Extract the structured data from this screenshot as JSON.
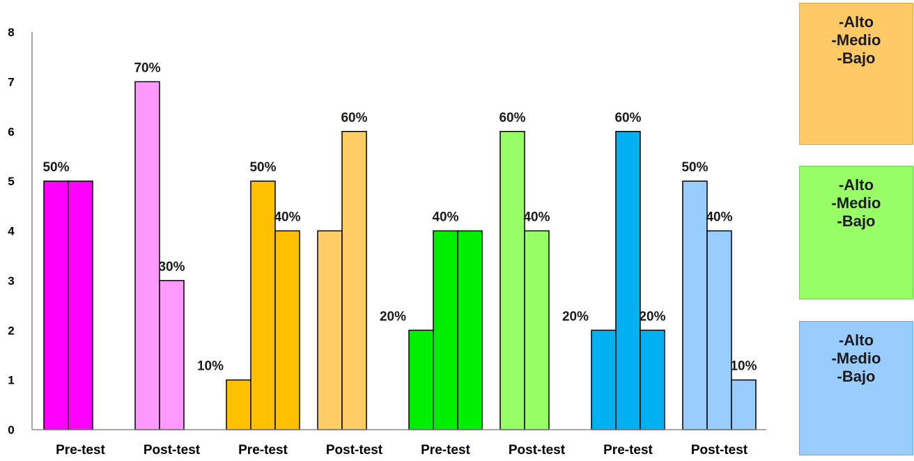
{
  "chart_data": {
    "type": "bar",
    "ylim": [
      0,
      8
    ],
    "yticks": [
      "0",
      "1",
      "2",
      "3",
      "4",
      "5",
      "6",
      "7",
      "8"
    ],
    "categories": [
      "Pre-test",
      "Post-test",
      "Pre-test",
      "Post-test",
      "Pre-test",
      "Post-test",
      "Pre-test",
      "Post-test"
    ],
    "groups": [
      {
        "category_index": 0,
        "color": "#ff00ff",
        "values": [
          5,
          5
        ],
        "labels": [
          "50%",
          ""
        ]
      },
      {
        "category_index": 1,
        "color": "#ff99ff",
        "values": [
          7,
          3
        ],
        "labels": [
          "70%",
          "30%"
        ]
      },
      {
        "category_index": 2,
        "color": "#ffc000",
        "values": [
          1,
          5,
          4
        ],
        "labels": [
          "10%",
          "50%",
          "40%"
        ]
      },
      {
        "category_index": 3,
        "color": "#ffcc66",
        "values": [
          4,
          6
        ],
        "labels": [
          "",
          "60%"
        ]
      },
      {
        "category_index": 4,
        "color": "#00ee00",
        "values": [
          2,
          4,
          4
        ],
        "labels": [
          "20%",
          "40%",
          ""
        ]
      },
      {
        "category_index": 5,
        "color": "#99ff66",
        "values": [
          6,
          4
        ],
        "labels": [
          "60%",
          "40%"
        ]
      },
      {
        "category_index": 6,
        "color": "#00b0f0",
        "values": [
          2,
          6,
          2
        ],
        "labels": [
          "20%",
          "60%",
          "20%"
        ]
      },
      {
        "category_index": 7,
        "color": "#99ccff",
        "values": [
          5,
          4,
          1
        ],
        "labels": [
          "50%",
          "40%",
          "10%"
        ]
      }
    ]
  },
  "legend": [
    {
      "lines": [
        "-Alto",
        "-Medio",
        "-Bajo"
      ],
      "color": "#ffc966",
      "border": "#e0a840"
    },
    {
      "lines": [
        "-Alto",
        "-Medio",
        "-Bajo"
      ],
      "color": "#99ff66",
      "border": "#66dd44"
    },
    {
      "lines": [
        "-Alto",
        "-Medio",
        "-Bajo"
      ],
      "color": "#99ccff",
      "border": "#66aaee"
    }
  ]
}
